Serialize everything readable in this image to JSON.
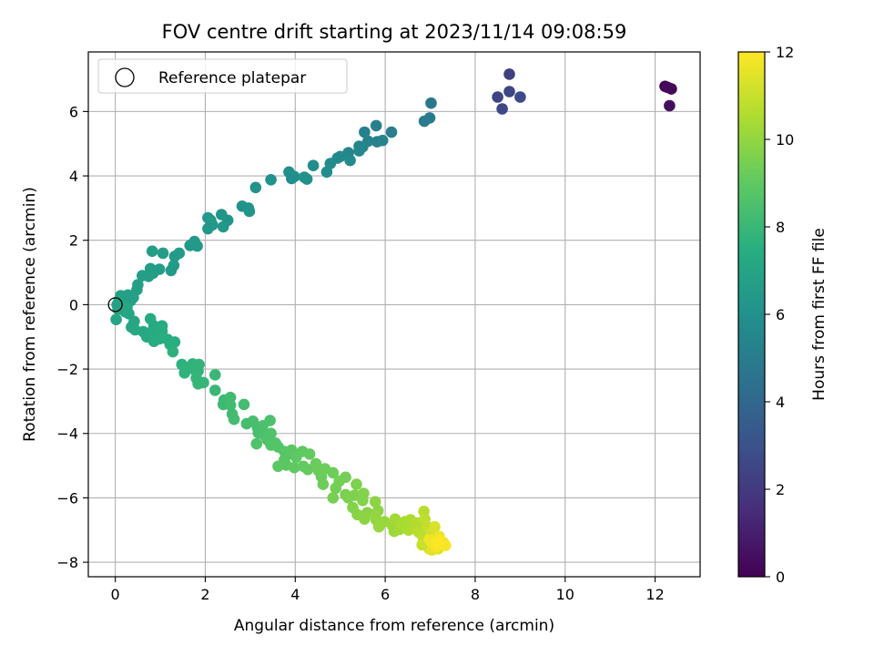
{
  "chart_data": {
    "type": "scatter",
    "title": "FOV centre drift starting at 2023/11/14 09:08:59",
    "xlabel": "Angular distance from reference (arcmin)",
    "ylabel": "Rotation from reference (arcmin)",
    "xlim": [
      -0.6,
      13.0
    ],
    "ylim": [
      -8.45,
      7.85
    ],
    "xticks": [
      0,
      2,
      4,
      6,
      8,
      10,
      12
    ],
    "yticks": [
      -8,
      -6,
      -4,
      -2,
      0,
      2,
      4,
      6
    ],
    "grid": true,
    "legend": {
      "location": "upper-left",
      "entries": [
        {
          "label": "Reference platepar",
          "marker": "open-circle",
          "x": 0,
          "y": 0
        }
      ]
    },
    "colorbar": {
      "label": "Hours from first FF file",
      "colormap": "viridis",
      "min": 0,
      "max": 12,
      "ticks": [
        0,
        2,
        4,
        6,
        8,
        10,
        12
      ]
    },
    "series": [
      {
        "points": [
          [
            12.22,
            6.78,
            0.0
          ],
          [
            12.36,
            6.7,
            0.1
          ],
          [
            12.28,
            6.75,
            0.3
          ],
          [
            12.32,
            6.18,
            0.4
          ],
          [
            8.76,
            7.16,
            2.2
          ],
          [
            8.5,
            6.45,
            2.4
          ],
          [
            8.76,
            6.62,
            2.5
          ],
          [
            8.6,
            6.08,
            2.6
          ],
          [
            9.0,
            6.45,
            2.7
          ],
          [
            7.02,
            6.26,
            4.8
          ],
          [
            6.99,
            5.8,
            4.9
          ],
          [
            6.87,
            5.7,
            5.0
          ],
          [
            6.14,
            5.36,
            5.1
          ],
          [
            5.8,
            5.56,
            5.1
          ],
          [
            5.54,
            5.36,
            5.2
          ],
          [
            5.82,
            5.06,
            5.2
          ],
          [
            5.94,
            5.1,
            5.3
          ],
          [
            5.62,
            5.08,
            5.3
          ],
          [
            5.42,
            4.92,
            5.4
          ],
          [
            5.5,
            4.9,
            5.4
          ],
          [
            5.42,
            4.78,
            5.5
          ],
          [
            5.18,
            4.72,
            5.5
          ],
          [
            5.0,
            4.6,
            5.6
          ],
          [
            4.94,
            4.55,
            5.6
          ],
          [
            5.22,
            4.48,
            5.7
          ],
          [
            4.78,
            4.38,
            5.7
          ],
          [
            4.7,
            4.12,
            5.8
          ],
          [
            4.4,
            4.32,
            5.8
          ],
          [
            3.86,
            4.12,
            5.9
          ],
          [
            3.98,
            3.98,
            5.9
          ],
          [
            3.92,
            3.92,
            5.9
          ],
          [
            4.2,
            3.96,
            6.0
          ],
          [
            4.26,
            3.9,
            6.0
          ],
          [
            3.46,
            3.88,
            6.0
          ],
          [
            3.12,
            3.64,
            6.1
          ],
          [
            2.82,
            3.06,
            6.1
          ],
          [
            2.96,
            3.0,
            6.1
          ],
          [
            2.98,
            2.9,
            6.2
          ],
          [
            2.5,
            2.62,
            6.2
          ],
          [
            2.36,
            2.8,
            6.2
          ],
          [
            2.4,
            2.42,
            6.3
          ],
          [
            2.12,
            2.62,
            6.3
          ],
          [
            2.16,
            2.48,
            6.3
          ],
          [
            2.06,
            2.36,
            6.3
          ],
          [
            2.06,
            2.7,
            6.4
          ],
          [
            1.76,
            1.96,
            6.4
          ],
          [
            1.66,
            1.84,
            6.4
          ],
          [
            1.82,
            1.82,
            6.4
          ],
          [
            1.42,
            1.6,
            6.5
          ],
          [
            1.32,
            1.5,
            6.5
          ],
          [
            1.3,
            1.22,
            6.5
          ],
          [
            1.24,
            1.06,
            6.5
          ],
          [
            1.06,
            1.6,
            6.6
          ],
          [
            0.82,
            1.66,
            6.6
          ],
          [
            0.98,
            1.1,
            6.6
          ],
          [
            0.84,
            0.98,
            6.6
          ],
          [
            0.78,
            1.12,
            6.6
          ],
          [
            0.74,
            0.88,
            6.7
          ],
          [
            0.6,
            0.9,
            6.7
          ],
          [
            0.5,
            0.62,
            6.7
          ],
          [
            0.48,
            0.46,
            6.7
          ],
          [
            0.4,
            0.22,
            6.8
          ],
          [
            0.34,
            0.12,
            6.8
          ],
          [
            0.28,
            0.3,
            6.8
          ],
          [
            0.12,
            0.28,
            6.8
          ],
          [
            0.08,
            0.12,
            6.9
          ],
          [
            0.04,
            0.0,
            6.9
          ],
          [
            0.18,
            0.02,
            6.9
          ],
          [
            0.06,
            -0.14,
            6.9
          ],
          [
            0.02,
            -0.46,
            7.0
          ],
          [
            0.22,
            -0.22,
            7.0
          ],
          [
            0.3,
            -0.28,
            7.0
          ],
          [
            0.26,
            -0.08,
            7.1
          ],
          [
            0.42,
            -0.52,
            7.1
          ],
          [
            0.36,
            -0.7,
            7.1
          ],
          [
            0.44,
            -0.78,
            7.2
          ],
          [
            0.62,
            -0.84,
            7.2
          ],
          [
            0.7,
            -1.0,
            7.2
          ],
          [
            0.82,
            -0.82,
            7.3
          ],
          [
            0.78,
            -0.44,
            7.3
          ],
          [
            0.86,
            -0.66,
            7.3
          ],
          [
            1.04,
            -0.66,
            7.3
          ],
          [
            1.04,
            -0.82,
            7.4
          ],
          [
            0.98,
            -1.06,
            7.4
          ],
          [
            0.86,
            -1.14,
            7.4
          ],
          [
            1.16,
            -1.08,
            7.5
          ],
          [
            1.22,
            -1.24,
            7.5
          ],
          [
            1.32,
            -1.16,
            7.5
          ],
          [
            1.28,
            -1.46,
            7.6
          ],
          [
            1.48,
            -1.86,
            7.6
          ],
          [
            1.56,
            -1.96,
            7.7
          ],
          [
            1.54,
            -2.12,
            7.7
          ],
          [
            1.72,
            -1.84,
            7.7
          ],
          [
            1.76,
            -2.02,
            7.8
          ],
          [
            1.84,
            -2.06,
            7.8
          ],
          [
            1.86,
            -1.86,
            7.8
          ],
          [
            1.8,
            -2.28,
            7.9
          ],
          [
            1.84,
            -2.46,
            7.9
          ],
          [
            1.96,
            -2.42,
            7.9
          ],
          [
            2.22,
            -2.18,
            8.0
          ],
          [
            2.22,
            -2.66,
            8.0
          ],
          [
            2.42,
            -2.96,
            8.1
          ],
          [
            2.4,
            -3.1,
            8.1
          ],
          [
            2.56,
            -2.88,
            8.2
          ],
          [
            2.56,
            -3.12,
            8.2
          ],
          [
            2.6,
            -3.4,
            8.2
          ],
          [
            2.64,
            -3.56,
            8.3
          ],
          [
            2.86,
            -3.1,
            8.3
          ],
          [
            2.92,
            -3.7,
            8.3
          ],
          [
            3.06,
            -3.62,
            8.4
          ],
          [
            3.16,
            -3.82,
            8.4
          ],
          [
            3.18,
            -3.98,
            8.4
          ],
          [
            3.28,
            -3.76,
            8.5
          ],
          [
            3.32,
            -4.06,
            8.5
          ],
          [
            3.44,
            -3.6,
            8.5
          ],
          [
            3.46,
            -4.0,
            8.6
          ],
          [
            3.38,
            -4.2,
            8.6
          ],
          [
            3.14,
            -4.32,
            8.6
          ],
          [
            3.46,
            -4.36,
            8.7
          ],
          [
            3.56,
            -4.3,
            8.7
          ],
          [
            3.62,
            -4.42,
            8.7
          ],
          [
            3.76,
            -4.56,
            8.8
          ],
          [
            3.84,
            -4.64,
            8.8
          ],
          [
            3.76,
            -4.82,
            8.8
          ],
          [
            3.62,
            -5.02,
            8.9
          ],
          [
            3.8,
            -4.98,
            8.9
          ],
          [
            3.92,
            -4.52,
            8.9
          ],
          [
            4.02,
            -4.74,
            9.0
          ],
          [
            3.98,
            -5.06,
            9.0
          ],
          [
            4.16,
            -4.56,
            9.0
          ],
          [
            4.32,
            -4.64,
            9.1
          ],
          [
            4.18,
            -5.02,
            9.1
          ],
          [
            4.28,
            -5.12,
            9.1
          ],
          [
            4.46,
            -4.94,
            9.2
          ],
          [
            4.52,
            -5.16,
            9.2
          ],
          [
            4.58,
            -5.34,
            9.2
          ],
          [
            4.66,
            -5.1,
            9.3
          ],
          [
            4.62,
            -5.58,
            9.3
          ],
          [
            4.84,
            -5.22,
            9.3
          ],
          [
            4.98,
            -5.48,
            9.4
          ],
          [
            4.9,
            -5.7,
            9.4
          ],
          [
            5.12,
            -5.36,
            9.4
          ],
          [
            4.84,
            -6.0,
            9.5
          ],
          [
            5.12,
            -5.9,
            9.5
          ],
          [
            5.18,
            -6.0,
            9.6
          ],
          [
            5.36,
            -5.58,
            9.6
          ],
          [
            5.32,
            -5.92,
            9.6
          ],
          [
            5.28,
            -6.3,
            9.7
          ],
          [
            5.52,
            -5.86,
            9.7
          ],
          [
            5.5,
            -6.08,
            9.7
          ],
          [
            5.38,
            -6.52,
            9.8
          ],
          [
            5.6,
            -6.46,
            9.8
          ],
          [
            5.54,
            -6.66,
            9.9
          ],
          [
            5.78,
            -6.12,
            9.9
          ],
          [
            5.84,
            -6.4,
            9.9
          ],
          [
            5.78,
            -6.56,
            10.0
          ],
          [
            5.8,
            -6.68,
            10.0
          ],
          [
            5.86,
            -6.9,
            10.1
          ],
          [
            5.98,
            -6.74,
            10.1
          ],
          [
            6.16,
            -6.86,
            10.2
          ],
          [
            6.2,
            -7.04,
            10.2
          ],
          [
            6.32,
            -6.98,
            10.3
          ],
          [
            6.22,
            -6.66,
            10.3
          ],
          [
            6.36,
            -6.82,
            10.4
          ],
          [
            6.44,
            -6.74,
            10.4
          ],
          [
            6.52,
            -7.0,
            10.5
          ],
          [
            6.56,
            -6.68,
            10.5
          ],
          [
            6.7,
            -6.94,
            10.6
          ],
          [
            6.72,
            -6.78,
            10.6
          ],
          [
            6.74,
            -7.06,
            10.7
          ],
          [
            6.86,
            -6.42,
            10.7
          ],
          [
            6.88,
            -6.66,
            10.8
          ],
          [
            6.84,
            -7.22,
            10.8
          ],
          [
            6.94,
            -6.9,
            10.9
          ],
          [
            6.82,
            -7.46,
            11.0
          ],
          [
            6.94,
            -7.42,
            11.0
          ],
          [
            7.0,
            -7.22,
            11.1
          ],
          [
            6.98,
            -7.58,
            11.1
          ],
          [
            7.02,
            -7.12,
            11.2
          ],
          [
            7.08,
            -7.48,
            11.2
          ],
          [
            7.12,
            -7.28,
            11.3
          ],
          [
            7.1,
            -6.9,
            11.3
          ],
          [
            7.18,
            -7.58,
            11.4
          ],
          [
            7.2,
            -7.44,
            11.4
          ],
          [
            7.3,
            -7.4,
            11.5
          ],
          [
            7.04,
            -7.62,
            11.5
          ],
          [
            7.2,
            -7.2,
            11.6
          ],
          [
            7.26,
            -7.36,
            11.6
          ],
          [
            6.98,
            -7.3,
            11.7
          ],
          [
            7.06,
            -7.4,
            11.8
          ],
          [
            7.14,
            -7.52,
            11.8
          ],
          [
            7.22,
            -7.3,
            11.9
          ],
          [
            7.34,
            -7.48,
            11.9
          ],
          [
            7.16,
            -7.4,
            12.0
          ]
        ]
      }
    ]
  }
}
